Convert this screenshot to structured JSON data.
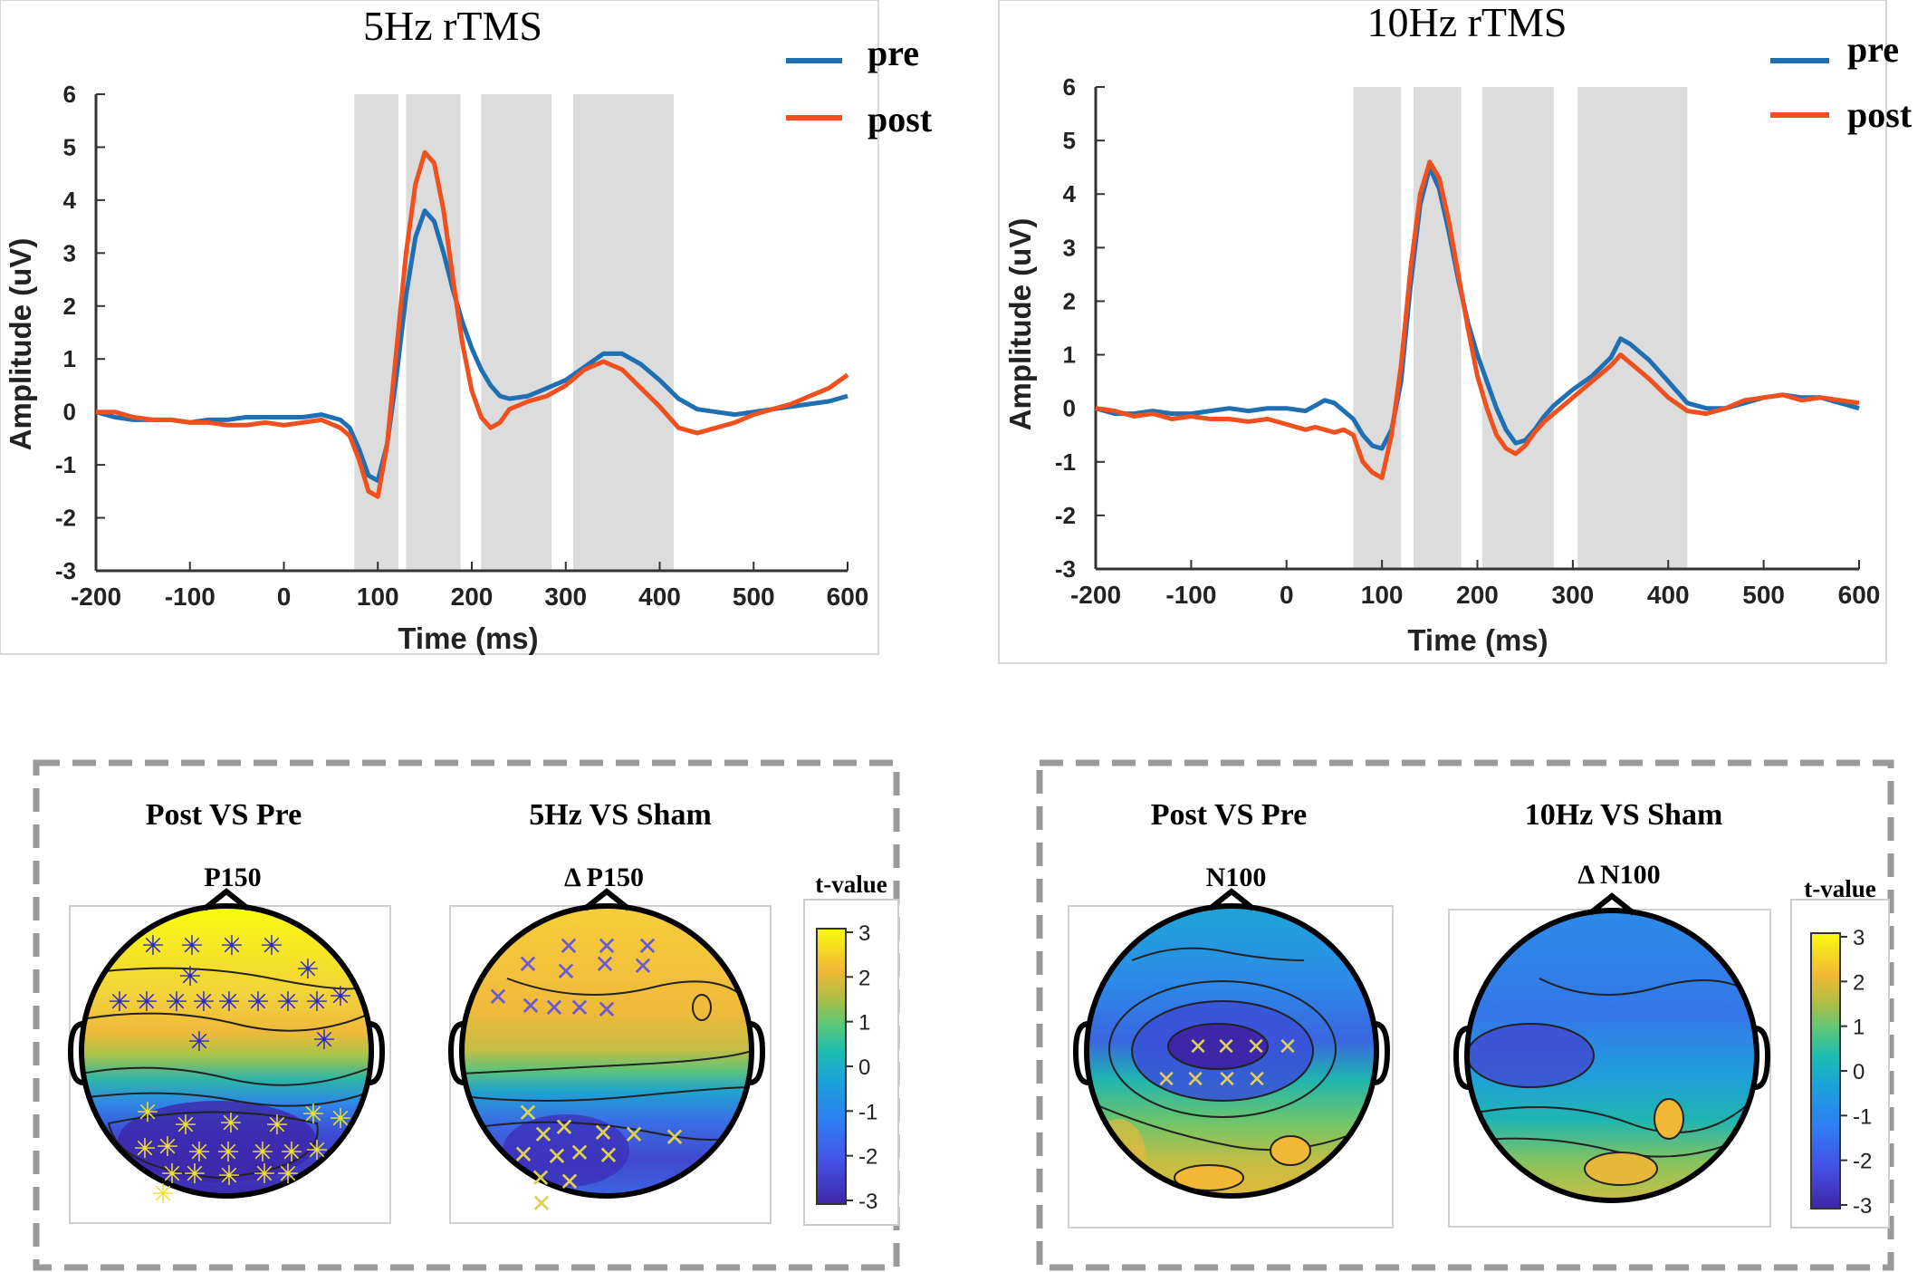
{
  "colors": {
    "pre": "#1f6fb5",
    "post": "#f0501e",
    "shade": "#dcdcdc",
    "frame": "#999999"
  },
  "chart_data": [
    {
      "type": "line",
      "title": "5Hz rTMS",
      "xlabel": "Time (ms)",
      "ylabel": "Amplitude (uV)",
      "xlim": [
        -200,
        600
      ],
      "ylim": [
        -3,
        6
      ],
      "xticks": [
        "-200",
        "-100",
        "0",
        "100",
        "200",
        "300",
        "400",
        "500",
        "600"
      ],
      "yticks": [
        "-3",
        "-2",
        "-1",
        "0",
        "1",
        "2",
        "3",
        "4",
        "5",
        "6"
      ],
      "legend": "top-right",
      "shaded_windows_ms": [
        [
          75,
          122
        ],
        [
          130,
          188
        ],
        [
          210,
          285
        ],
        [
          308,
          415
        ]
      ],
      "series": [
        {
          "name": "pre",
          "x": [
            -200,
            -180,
            -160,
            -140,
            -120,
            -100,
            -80,
            -60,
            -40,
            -20,
            0,
            20,
            40,
            60,
            70,
            80,
            90,
            100,
            110,
            120,
            130,
            140,
            150,
            160,
            170,
            180,
            190,
            200,
            210,
            220,
            230,
            240,
            260,
            280,
            300,
            320,
            340,
            360,
            380,
            400,
            420,
            440,
            460,
            480,
            500,
            520,
            540,
            560,
            580,
            600
          ],
          "y": [
            0.0,
            -0.1,
            -0.15,
            -0.15,
            -0.15,
            -0.2,
            -0.15,
            -0.15,
            -0.1,
            -0.1,
            -0.1,
            -0.1,
            -0.05,
            -0.15,
            -0.3,
            -0.7,
            -1.2,
            -1.3,
            -0.6,
            0.7,
            2.2,
            3.3,
            3.8,
            3.6,
            3.0,
            2.3,
            1.7,
            1.2,
            0.8,
            0.5,
            0.3,
            0.25,
            0.3,
            0.45,
            0.6,
            0.85,
            1.1,
            1.1,
            0.9,
            0.6,
            0.25,
            0.05,
            0.0,
            -0.05,
            0.0,
            0.05,
            0.1,
            0.15,
            0.2,
            0.3
          ]
        },
        {
          "name": "post",
          "x": [
            -200,
            -180,
            -160,
            -140,
            -120,
            -100,
            -80,
            -60,
            -40,
            -20,
            0,
            20,
            40,
            60,
            70,
            80,
            90,
            100,
            110,
            120,
            130,
            140,
            150,
            160,
            170,
            180,
            190,
            200,
            210,
            220,
            230,
            240,
            260,
            280,
            300,
            320,
            340,
            360,
            380,
            400,
            420,
            440,
            460,
            480,
            500,
            520,
            540,
            560,
            580,
            600
          ],
          "y": [
            0.0,
            0.0,
            -0.1,
            -0.15,
            -0.15,
            -0.2,
            -0.2,
            -0.25,
            -0.25,
            -0.2,
            -0.25,
            -0.2,
            -0.15,
            -0.3,
            -0.45,
            -0.9,
            -1.5,
            -1.6,
            -0.6,
            1.2,
            3.0,
            4.3,
            4.9,
            4.7,
            3.8,
            2.5,
            1.3,
            0.4,
            -0.1,
            -0.3,
            -0.2,
            0.05,
            0.2,
            0.3,
            0.5,
            0.8,
            0.95,
            0.8,
            0.45,
            0.1,
            -0.3,
            -0.4,
            -0.3,
            -0.2,
            -0.05,
            0.05,
            0.15,
            0.3,
            0.45,
            0.7
          ]
        }
      ]
    },
    {
      "type": "line",
      "title": "10Hz rTMS",
      "xlabel": "Time (ms)",
      "ylabel": "Amplitude (uV)",
      "xlim": [
        -200,
        600
      ],
      "ylim": [
        -3,
        6
      ],
      "xticks": [
        "-200",
        "-100",
        "0",
        "100",
        "200",
        "300",
        "400",
        "500",
        "600"
      ],
      "yticks": [
        "-3",
        "-2",
        "-1",
        "0",
        "1",
        "2",
        "3",
        "4",
        "5",
        "6"
      ],
      "legend": "top-right",
      "shaded_windows_ms": [
        [
          70,
          120
        ],
        [
          133,
          183
        ],
        [
          205,
          280
        ],
        [
          305,
          420
        ]
      ],
      "series": [
        {
          "name": "pre",
          "x": [
            -200,
            -180,
            -160,
            -140,
            -120,
            -100,
            -80,
            -60,
            -40,
            -20,
            0,
            20,
            30,
            40,
            50,
            60,
            70,
            80,
            90,
            100,
            110,
            120,
            130,
            140,
            150,
            160,
            170,
            180,
            190,
            200,
            210,
            220,
            230,
            240,
            250,
            260,
            270,
            280,
            300,
            320,
            340,
            350,
            360,
            380,
            400,
            420,
            440,
            460,
            480,
            500,
            520,
            540,
            560,
            580,
            600
          ],
          "y": [
            0.0,
            -0.1,
            -0.1,
            -0.05,
            -0.1,
            -0.1,
            -0.05,
            0.0,
            -0.05,
            0.0,
            0.0,
            -0.05,
            0.05,
            0.15,
            0.1,
            -0.05,
            -0.2,
            -0.5,
            -0.7,
            -0.75,
            -0.4,
            0.5,
            2.3,
            3.8,
            4.5,
            4.1,
            3.3,
            2.4,
            1.6,
            1.0,
            0.5,
            0.0,
            -0.4,
            -0.65,
            -0.6,
            -0.4,
            -0.15,
            0.05,
            0.35,
            0.6,
            0.95,
            1.3,
            1.2,
            0.9,
            0.5,
            0.1,
            0.0,
            0.0,
            0.1,
            0.2,
            0.25,
            0.2,
            0.2,
            0.1,
            0.0
          ]
        },
        {
          "name": "post",
          "x": [
            -200,
            -180,
            -160,
            -140,
            -120,
            -100,
            -80,
            -60,
            -40,
            -20,
            0,
            20,
            30,
            40,
            50,
            60,
            70,
            80,
            90,
            100,
            110,
            120,
            130,
            140,
            150,
            160,
            170,
            180,
            190,
            200,
            210,
            220,
            230,
            240,
            250,
            260,
            270,
            280,
            300,
            320,
            340,
            350,
            360,
            380,
            400,
            420,
            440,
            460,
            480,
            500,
            520,
            540,
            560,
            580,
            600
          ],
          "y": [
            0.0,
            -0.05,
            -0.15,
            -0.1,
            -0.2,
            -0.15,
            -0.2,
            -0.2,
            -0.25,
            -0.2,
            -0.3,
            -0.4,
            -0.35,
            -0.4,
            -0.45,
            -0.4,
            -0.5,
            -1.0,
            -1.2,
            -1.3,
            -0.5,
            0.8,
            2.6,
            4.0,
            4.6,
            4.3,
            3.5,
            2.5,
            1.5,
            0.6,
            0.0,
            -0.5,
            -0.75,
            -0.85,
            -0.7,
            -0.45,
            -0.25,
            -0.1,
            0.2,
            0.5,
            0.8,
            1.0,
            0.85,
            0.55,
            0.2,
            -0.05,
            -0.1,
            0.0,
            0.15,
            0.2,
            0.25,
            0.15,
            0.2,
            0.15,
            0.1
          ]
        }
      ]
    }
  ],
  "panels": {
    "left": {
      "maps": [
        {
          "heading": "Post VS Pre",
          "sub": "P150"
        },
        {
          "heading": "5Hz VS Sham",
          "sub": "Δ P150"
        }
      ],
      "colorbar_label": "t-value",
      "colorbar_ticks": [
        "3",
        "2",
        "1",
        "0",
        "-1",
        "-2",
        "-3"
      ]
    },
    "right": {
      "maps": [
        {
          "heading": "Post VS Pre",
          "sub": "N100"
        },
        {
          "heading": "10Hz VS Sham",
          "sub": "Δ N100"
        }
      ],
      "colorbar_label": "t-value",
      "colorbar_ticks": [
        "3",
        "2",
        "1",
        "0",
        "-1",
        "-2",
        "-3"
      ]
    }
  }
}
